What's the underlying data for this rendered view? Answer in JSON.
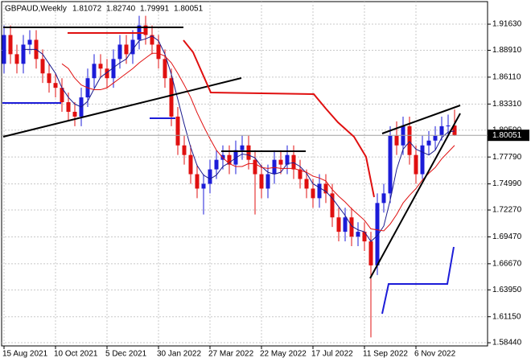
{
  "chart_data": {
    "type": "candlestick",
    "title": "GBPAUD,Weekly",
    "header_labels": [
      "1.81072",
      "1.82740",
      "1.79991",
      "1.80051"
    ],
    "categories": [
      "15 Aug 2021",
      null,
      null,
      null,
      null,
      null,
      null,
      null,
      "10 Oct 2021",
      null,
      null,
      null,
      null,
      null,
      null,
      null,
      "5 Dec 2021",
      null,
      null,
      null,
      null,
      null,
      null,
      null,
      "30 Jan 2022",
      null,
      null,
      null,
      null,
      null,
      null,
      null,
      "27 Mar 2022",
      null,
      null,
      null,
      null,
      null,
      null,
      null,
      "22 May 2022",
      null,
      null,
      null,
      null,
      null,
      null,
      null,
      "17 Jul 2022",
      null,
      null,
      null,
      null,
      null,
      null,
      null,
      "11 Sep 2022",
      null,
      null,
      null,
      null,
      null,
      null,
      null,
      "6 Nov 2022",
      null,
      null,
      null,
      null,
      null,
      null
    ],
    "open": [
      1.875,
      1.905,
      1.885,
      1.875,
      1.895,
      1.9,
      1.88,
      1.865,
      1.855,
      1.85,
      1.835,
      1.825,
      1.82,
      1.84,
      1.86,
      1.875,
      1.87,
      1.86,
      1.88,
      1.895,
      1.885,
      1.9,
      1.915,
      1.905,
      1.895,
      1.88,
      1.86,
      1.82,
      1.79,
      1.78,
      1.76,
      1.745,
      1.75,
      1.765,
      1.775,
      1.78,
      1.77,
      1.785,
      1.79,
      1.775,
      1.76,
      1.745,
      1.76,
      1.775,
      1.77,
      1.78,
      1.765,
      1.755,
      1.745,
      1.735,
      1.75,
      1.74,
      1.715,
      1.7,
      1.715,
      1.695,
      1.7,
      1.69,
      1.665,
      1.73,
      1.74,
      1.8,
      1.79,
      1.81,
      1.78,
      1.76,
      1.79,
      1.795,
      1.8,
      1.81,
      1.81072
    ],
    "high": [
      1.915,
      1.915,
      1.895,
      1.905,
      1.91,
      1.91,
      1.89,
      1.875,
      1.865,
      1.86,
      1.845,
      1.835,
      1.85,
      1.87,
      1.885,
      1.885,
      1.88,
      1.89,
      1.905,
      1.905,
      1.91,
      1.925,
      1.925,
      1.915,
      1.905,
      1.89,
      1.87,
      1.83,
      1.8,
      1.79,
      1.77,
      1.76,
      1.775,
      1.785,
      1.79,
      1.79,
      1.795,
      1.8,
      1.8,
      1.785,
      1.77,
      1.77,
      1.785,
      1.785,
      1.79,
      1.79,
      1.775,
      1.765,
      1.755,
      1.76,
      1.76,
      1.75,
      1.725,
      1.725,
      1.725,
      1.71,
      1.71,
      1.7,
      1.74,
      1.75,
      1.81,
      1.815,
      1.82,
      1.82,
      1.79,
      1.8,
      1.805,
      1.81,
      1.82,
      1.822,
      1.8274
    ],
    "low": [
      1.865,
      1.875,
      1.865,
      1.865,
      1.885,
      1.87,
      1.855,
      1.845,
      1.84,
      1.825,
      1.815,
      1.81,
      1.81,
      1.83,
      1.85,
      1.86,
      1.85,
      1.85,
      1.87,
      1.875,
      1.875,
      1.89,
      1.895,
      1.885,
      1.87,
      1.85,
      1.81,
      1.78,
      1.77,
      1.75,
      1.735,
      1.718,
      1.74,
      1.755,
      1.765,
      1.76,
      1.76,
      1.775,
      1.765,
      1.718,
      1.735,
      1.735,
      1.75,
      1.76,
      1.76,
      1.755,
      1.745,
      1.735,
      1.725,
      1.725,
      1.73,
      1.705,
      1.69,
      1.69,
      1.685,
      1.685,
      1.68,
      1.59,
      1.655,
      1.72,
      1.73,
      1.78,
      1.78,
      1.77,
      1.75,
      1.755,
      1.78,
      1.785,
      1.795,
      1.8,
      1.79991
    ],
    "close": [
      1.905,
      1.885,
      1.875,
      1.895,
      1.9,
      1.88,
      1.865,
      1.855,
      1.85,
      1.835,
      1.825,
      1.82,
      1.84,
      1.86,
      1.875,
      1.87,
      1.86,
      1.88,
      1.895,
      1.885,
      1.9,
      1.915,
      1.905,
      1.895,
      1.88,
      1.86,
      1.82,
      1.79,
      1.78,
      1.76,
      1.745,
      1.75,
      1.765,
      1.775,
      1.78,
      1.77,
      1.785,
      1.79,
      1.775,
      1.76,
      1.745,
      1.76,
      1.775,
      1.77,
      1.78,
      1.765,
      1.755,
      1.745,
      1.735,
      1.75,
      1.74,
      1.715,
      1.7,
      1.715,
      1.695,
      1.7,
      1.69,
      1.665,
      1.73,
      1.74,
      1.8,
      1.79,
      1.81,
      1.78,
      1.76,
      1.79,
      1.795,
      1.8,
      1.81,
      1.8107,
      1.80051
    ],
    "up_color": "#1c1cd8",
    "down_color": "#e01010",
    "wick_color": "#202020",
    "lines": [
      {
        "color": "#1a1a8c",
        "values": [
          null,
          null,
          null,
          1.89,
          1.89,
          1.89,
          1.885,
          1.875,
          1.865,
          1.85,
          1.84,
          1.833,
          1.83,
          1.836,
          1.849,
          1.861,
          1.866,
          1.871,
          1.876,
          1.88,
          1.89,
          1.899,
          1.901,
          1.904,
          1.899,
          1.885,
          1.864,
          1.838,
          1.812,
          1.788,
          1.769,
          1.759,
          1.755,
          1.759,
          1.768,
          1.772,
          1.777,
          1.781,
          1.78,
          1.777,
          1.768,
          1.762,
          1.76,
          1.762,
          1.771,
          1.772,
          1.768,
          1.761,
          1.75,
          1.746,
          1.742,
          1.735,
          1.726,
          1.717,
          1.706,
          1.702,
          1.7,
          1.69,
          1.696,
          1.706,
          1.733,
          1.765,
          1.786,
          1.794,
          1.786,
          1.783,
          1.78,
          1.785,
          1.798,
          1.804,
          1.805
        ]
      },
      {
        "color": "#e01010",
        "values": [
          null,
          null,
          null,
          null,
          null,
          null,
          null,
          null,
          null,
          1.875,
          1.87,
          1.86,
          1.853,
          1.85,
          1.848,
          1.848,
          1.85,
          1.855,
          1.86,
          1.865,
          1.87,
          1.876,
          1.881,
          1.886,
          1.886,
          1.883,
          1.876,
          1.865,
          1.853,
          1.84,
          1.824,
          1.81,
          1.797,
          1.785,
          1.777,
          1.771,
          1.768,
          1.768,
          1.771,
          1.771,
          1.767,
          1.766,
          1.767,
          1.766,
          1.766,
          1.766,
          1.764,
          1.762,
          1.758,
          1.756,
          1.753,
          1.744,
          1.737,
          1.731,
          1.724,
          1.718,
          1.712,
          1.703,
          1.702,
          1.701,
          1.708,
          1.718,
          1.73,
          1.738,
          1.745,
          1.754,
          1.761,
          1.767,
          1.776,
          1.783,
          1.79
        ]
      }
    ],
    "ylim": [
      1.5811,
      1.9398
    ],
    "yticks": [
      {
        "value": 1.9163,
        "label": "1.91630"
      },
      {
        "value": 1.8891,
        "label": "1.88910"
      },
      {
        "value": 1.8611,
        "label": "1.86110"
      },
      {
        "value": 1.8331,
        "label": "1.83310"
      },
      {
        "value": 1.8059,
        "label": "1.80590"
      },
      {
        "value": 1.7779,
        "label": "1.77790"
      },
      {
        "value": 1.7499,
        "label": "1.74990"
      },
      {
        "value": 1.7227,
        "label": "1.72270"
      },
      {
        "value": 1.6947,
        "label": "1.69470"
      },
      {
        "value": 1.6667,
        "label": "1.66670"
      },
      {
        "value": 1.6395,
        "label": "1.63950"
      },
      {
        "value": 1.6115,
        "label": "1.61150"
      },
      {
        "value": 1.5844,
        "label": "1.58440"
      }
    ],
    "grid": true
  }
}
